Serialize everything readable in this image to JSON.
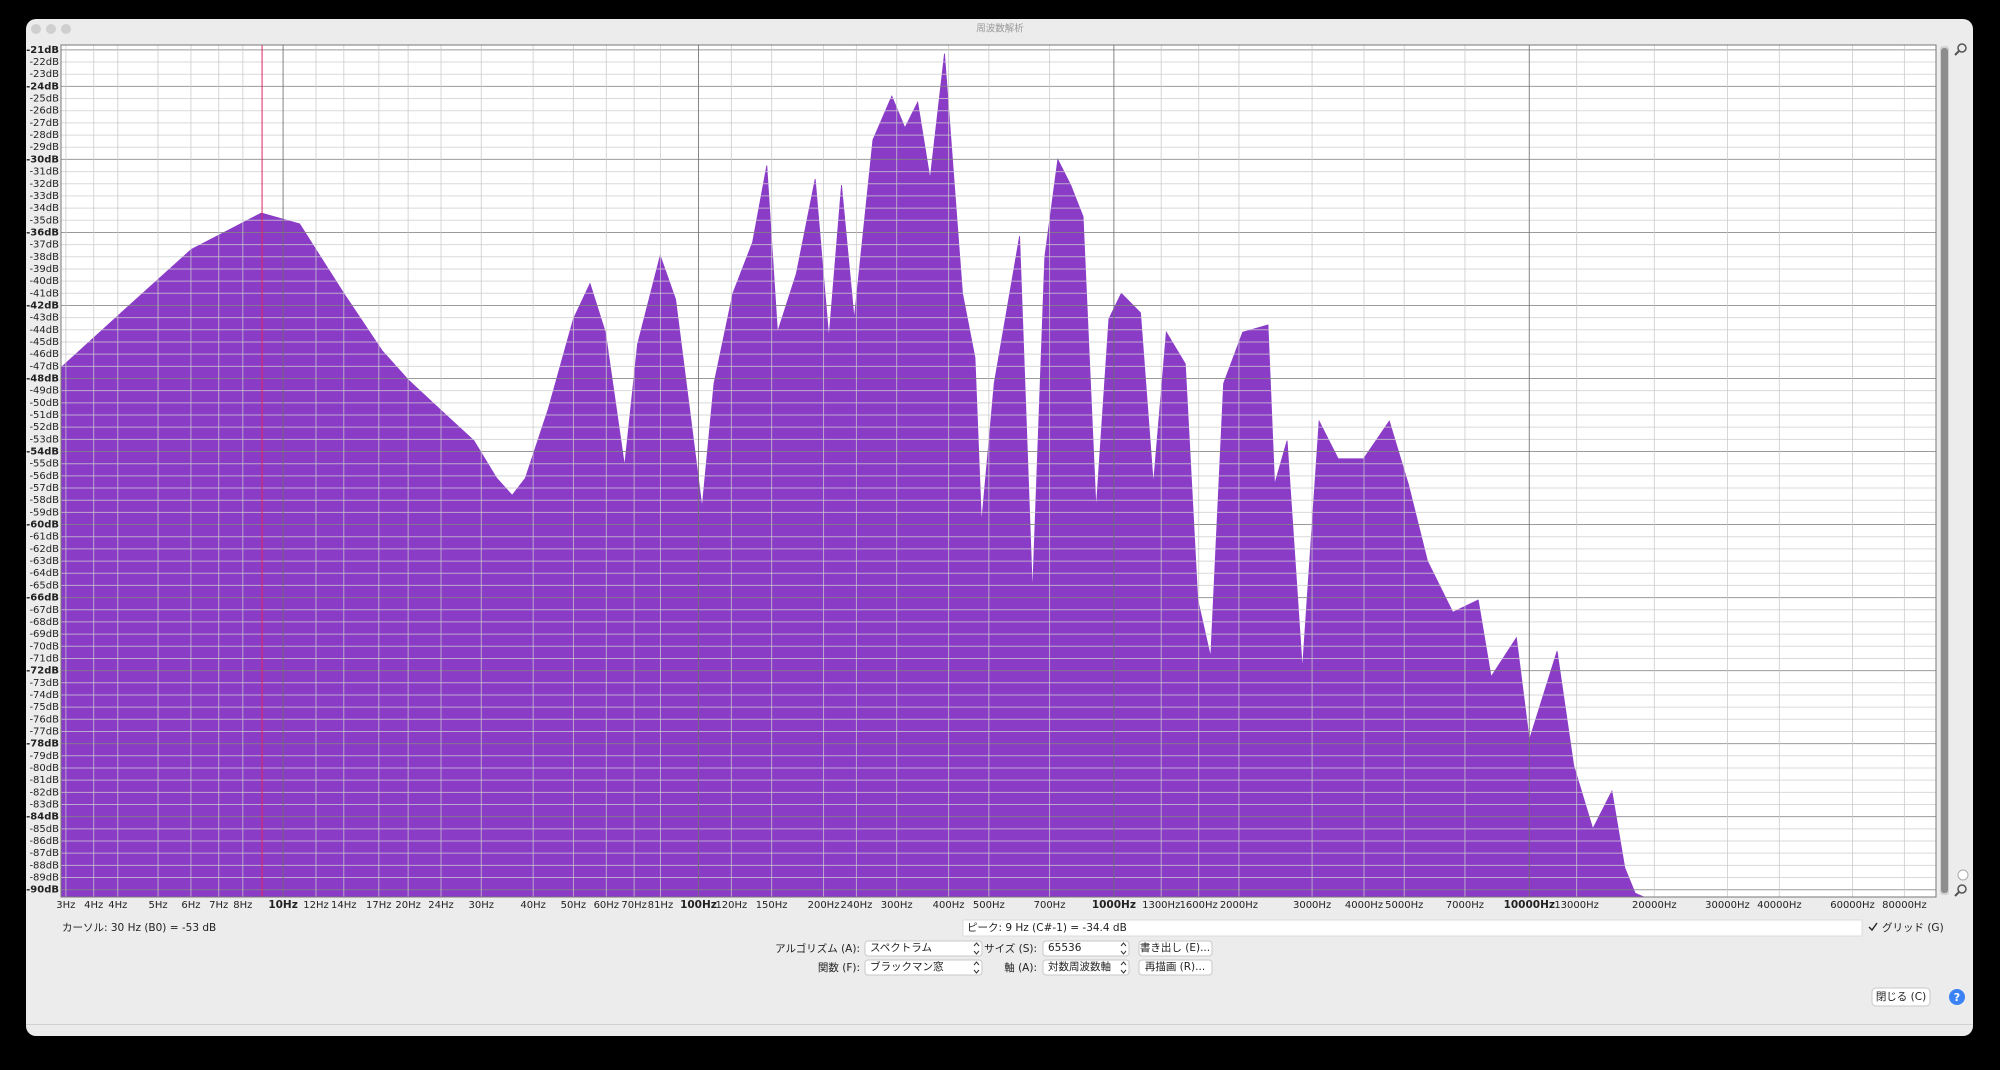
{
  "window": {
    "title": "周波数解析"
  },
  "chart_data": {
    "type": "area",
    "color": "#8a3cc7",
    "xscale": "log",
    "grid": true,
    "marker_x": 8.9,
    "x": [
      2.92,
      4.23,
      6.01,
      8.87,
      10.96,
      14.0,
      17.3,
      20.0,
      23.8,
      28.8,
      32.7,
      35.6,
      38.3,
      43.5,
      50.0,
      54.8,
      59.7,
      66.4,
      71.3,
      80.9,
      88.1,
      102,
      109,
      121,
      135,
      146,
      155,
      172,
      191,
      206,
      221,
      237,
      263,
      292,
      314,
      337,
      361,
      391,
      432,
      463,
      480,
      515,
      593,
      637,
      682,
      733,
      787,
      843,
      906,
      973,
      1042,
      1159,
      1245,
      1337,
      1486,
      1592,
      1710,
      1837,
      2042,
      2350,
      2437,
      2612,
      2844,
      3119,
      3467,
      3990,
      4603,
      5117,
      5689,
      6546,
      7534,
      8091,
      9311,
      10000,
      11670,
      12790,
      14220,
      15810,
      16980,
      17990,
      18880
    ],
    "values": [
      -47.1,
      -42.1,
      -37.4,
      -34.4,
      -35.3,
      -41,
      -45.7,
      -48.1,
      -50.5,
      -53.1,
      -56.2,
      -57.6,
      -56.2,
      -50.5,
      -43.1,
      -40.2,
      -44.2,
      -55.2,
      -45.2,
      -37.9,
      -41.5,
      -58.6,
      -48.4,
      -41,
      -36.8,
      -30.5,
      -44.2,
      -39.4,
      -31.6,
      -44.7,
      -32.1,
      -43.1,
      -28.4,
      -24.8,
      -27.4,
      -25.3,
      -31.6,
      -21.3,
      -41,
      -46.3,
      -59.9,
      -48.4,
      -36.3,
      -65.7,
      -38,
      -30,
      -32.1,
      -34.7,
      -58.8,
      -43.1,
      -41,
      -42.6,
      -56.7,
      -44.2,
      -46.8,
      -66.2,
      -70.9,
      -48.4,
      -44.2,
      -43.6,
      -56.7,
      -53.1,
      -71.9,
      -51.5,
      -54.6,
      -54.6,
      -51.5,
      -56.7,
      -63,
      -67.2,
      -66.2,
      -72.5,
      -69.3,
      -77.7,
      -70.4,
      -79.8,
      -85,
      -81.9,
      -88.2,
      -90.3,
      -90.6
    ],
    "xlim": [
      2.92,
      95300
    ],
    "ylim": [
      -90.6,
      -20.6
    ],
    "xticks": [
      {
        "value": 3,
        "label": "3Hz"
      },
      {
        "value": 3.5,
        "label": "4Hz"
      },
      {
        "value": 4,
        "label": "4Hz"
      },
      {
        "value": 5,
        "label": "5Hz"
      },
      {
        "value": 6,
        "label": "6Hz"
      },
      {
        "value": 7,
        "label": "7Hz"
      },
      {
        "value": 8,
        "label": "8Hz"
      },
      {
        "value": 10,
        "label": "10Hz"
      },
      {
        "value": 12,
        "label": "12Hz"
      },
      {
        "value": 14,
        "label": "14Hz"
      },
      {
        "value": 17,
        "label": "17Hz"
      },
      {
        "value": 20,
        "label": "20Hz"
      },
      {
        "value": 24,
        "label": "24Hz"
      },
      {
        "value": 30,
        "label": "30Hz"
      },
      {
        "value": 40,
        "label": "40Hz"
      },
      {
        "value": 50,
        "label": "50Hz"
      },
      {
        "value": 60,
        "label": "60Hz"
      },
      {
        "value": 70,
        "label": "70Hz"
      },
      {
        "value": 81,
        "label": "81Hz"
      },
      {
        "value": 100,
        "label": "100Hz"
      },
      {
        "value": 120,
        "label": "120Hz"
      },
      {
        "value": 150,
        "label": "150Hz"
      },
      {
        "value": 200,
        "label": "200Hz"
      },
      {
        "value": 240,
        "label": "240Hz"
      },
      {
        "value": 300,
        "label": "300Hz"
      },
      {
        "value": 400,
        "label": "400Hz"
      },
      {
        "value": 500,
        "label": "500Hz"
      },
      {
        "value": 700,
        "label": "700Hz"
      },
      {
        "value": 1000,
        "label": "1000Hz"
      },
      {
        "value": 1300,
        "label": "1300Hz"
      },
      {
        "value": 1600,
        "label": "1600Hz"
      },
      {
        "value": 2000,
        "label": "2000Hz"
      },
      {
        "value": 3000,
        "label": "3000Hz"
      },
      {
        "value": 4000,
        "label": "4000Hz"
      },
      {
        "value": 5000,
        "label": "5000Hz"
      },
      {
        "value": 7000,
        "label": "7000Hz"
      },
      {
        "value": 10000,
        "label": "10000Hz"
      },
      {
        "value": 13000,
        "label": "13000Hz"
      },
      {
        "value": 20000,
        "label": "20000Hz"
      },
      {
        "value": 30000,
        "label": "30000Hz"
      },
      {
        "value": 40000,
        "label": "40000Hz"
      },
      {
        "value": 60000,
        "label": "60000Hz"
      },
      {
        "value": 80000,
        "label": "80000Hz"
      }
    ],
    "yticks": [
      {
        "value": -21,
        "label": "-21dB"
      },
      {
        "value": -22,
        "label": "-22dB"
      },
      {
        "value": -23,
        "label": "-23dB"
      },
      {
        "value": -24,
        "label": "-24dB"
      },
      {
        "value": -25,
        "label": "-25dB"
      },
      {
        "value": -26,
        "label": "-26dB"
      },
      {
        "value": -27,
        "label": "-27dB"
      },
      {
        "value": -28,
        "label": "-28dB"
      },
      {
        "value": -29,
        "label": "-29dB"
      },
      {
        "value": -30,
        "label": "-30dB"
      },
      {
        "value": -31,
        "label": "-31dB"
      },
      {
        "value": -32,
        "label": "-32dB"
      },
      {
        "value": -33,
        "label": "-33dB"
      },
      {
        "value": -34,
        "label": "-34dB"
      },
      {
        "value": -35,
        "label": "-35dB"
      },
      {
        "value": -36,
        "label": "-36dB"
      },
      {
        "value": -37,
        "label": "-37dB"
      },
      {
        "value": -38,
        "label": "-38dB"
      },
      {
        "value": -39,
        "label": "-39dB"
      },
      {
        "value": -40,
        "label": "-40dB"
      },
      {
        "value": -41,
        "label": "-41dB"
      },
      {
        "value": -42,
        "label": "-42dB"
      },
      {
        "value": -43,
        "label": "-43dB"
      },
      {
        "value": -44,
        "label": "-44dB"
      },
      {
        "value": -45,
        "label": "-45dB"
      },
      {
        "value": -46,
        "label": "-46dB"
      },
      {
        "value": -47,
        "label": "-47dB"
      },
      {
        "value": -48,
        "label": "-48dB"
      },
      {
        "value": -49,
        "label": "-49dB"
      },
      {
        "value": -50,
        "label": "-50dB"
      },
      {
        "value": -51,
        "label": "-51dB"
      },
      {
        "value": -52,
        "label": "-52dB"
      },
      {
        "value": -53,
        "label": "-53dB"
      },
      {
        "value": -54,
        "label": "-54dB"
      },
      {
        "value": -55,
        "label": "-55dB"
      },
      {
        "value": -56,
        "label": "-56dB"
      },
      {
        "value": -57,
        "label": "-57dB"
      },
      {
        "value": -58,
        "label": "-58dB"
      },
      {
        "value": -59,
        "label": "-59dB"
      },
      {
        "value": -60,
        "label": "-60dB"
      },
      {
        "value": -61,
        "label": "-61dB"
      },
      {
        "value": -62,
        "label": "-62dB"
      },
      {
        "value": -63,
        "label": "-63dB"
      },
      {
        "value": -64,
        "label": "-64dB"
      },
      {
        "value": -65,
        "label": "-65dB"
      },
      {
        "value": -66,
        "label": "-66dB"
      },
      {
        "value": -67,
        "label": "-67dB"
      },
      {
        "value": -68,
        "label": "-68dB"
      },
      {
        "value": -69,
        "label": "-69dB"
      },
      {
        "value": -70,
        "label": "-70dB"
      },
      {
        "value": -71,
        "label": "-71dB"
      },
      {
        "value": -72,
        "label": "-72dB"
      },
      {
        "value": -73,
        "label": "-73dB"
      },
      {
        "value": -74,
        "label": "-74dB"
      },
      {
        "value": -75,
        "label": "-75dB"
      },
      {
        "value": -76,
        "label": "-76dB"
      },
      {
        "value": -77,
        "label": "-77dB"
      },
      {
        "value": -78,
        "label": "-78dB"
      },
      {
        "value": -79,
        "label": "-79dB"
      },
      {
        "value": -80,
        "label": "-80dB"
      },
      {
        "value": -81,
        "label": "-81dB"
      },
      {
        "value": -82,
        "label": "-82dB"
      },
      {
        "value": -83,
        "label": "-83dB"
      },
      {
        "value": -84,
        "label": "-84dB"
      },
      {
        "value": -85,
        "label": "-85dB"
      },
      {
        "value": -86,
        "label": "-86dB"
      },
      {
        "value": -87,
        "label": "-87dB"
      },
      {
        "value": -88,
        "label": "-88dB"
      },
      {
        "value": -89,
        "label": "-89dB"
      },
      {
        "value": -90,
        "label": "-90dB"
      }
    ]
  },
  "status": {
    "cursor": "カーソル: 30 Hz (B0) = -53 dB",
    "peak": "ピーク: 9 Hz (C#-1) = -34.4 dB",
    "grid_checkbox": "グリッド (G)"
  },
  "controls": {
    "algorithm_label": "アルゴリズム (A):",
    "algorithm": "スペクトラム",
    "size_label": "サイズ (S):",
    "size": "65536",
    "export": "書き出し (E)...",
    "function_label": "関数 (F):",
    "function": "ブラックマン窓",
    "axis_label": "軸 (A):",
    "axis": "対数周波数軸",
    "replot": "再描画 (R)...",
    "close": "閉じる (C)",
    "help": "?"
  }
}
